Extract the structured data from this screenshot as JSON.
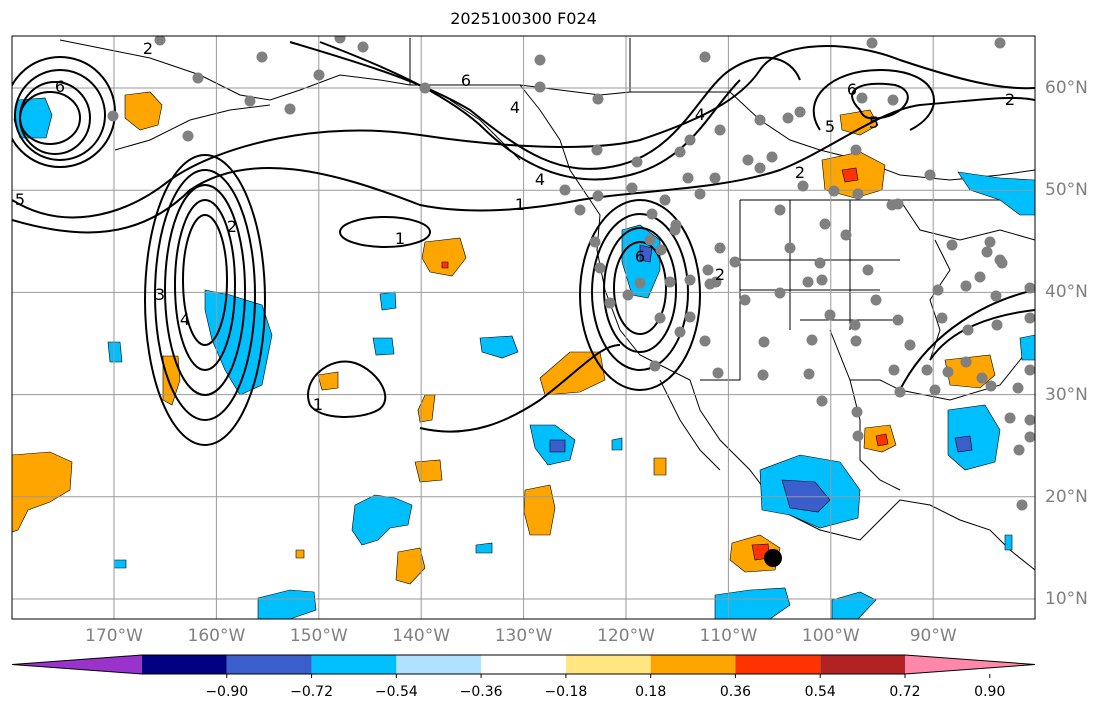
{
  "map": {
    "title": "2025100300 F024",
    "lon_labels": [
      {
        "label": "170°W",
        "lon": -170
      },
      {
        "label": "160°W",
        "lon": -160
      },
      {
        "label": "150°W",
        "lon": -150
      },
      {
        "label": "140°W",
        "lon": -140
      },
      {
        "label": "130°W",
        "lon": -130
      },
      {
        "label": "120°W",
        "lon": -120
      },
      {
        "label": "110°W",
        "lon": -110
      },
      {
        "label": "100°W",
        "lon": -100
      },
      {
        "label": "90°W",
        "lon": -90
      }
    ],
    "lat_labels": [
      {
        "label": "60°N",
        "lat": 60
      },
      {
        "label": "50°N",
        "lat": 50
      },
      {
        "label": "40°N",
        "lat": 40
      },
      {
        "label": "30°N",
        "lat": 30
      },
      {
        "label": "20°N",
        "lat": 20
      },
      {
        "label": "10°N",
        "lat": 10
      }
    ],
    "extent": {
      "lon_min": -180,
      "lon_max": -80,
      "lat_min": 8,
      "lat_max": 64
    },
    "grid": true,
    "contour_labels": [
      "1",
      "2",
      "3",
      "4",
      "5",
      "6"
    ],
    "colorbar": {
      "colors": [
        "#9933cc",
        "#000080",
        "#3a5fcd",
        "#00bfff",
        "#b0e2ff",
        "#ffffff",
        "#ffe680",
        "#ffa500",
        "#ff3300",
        "#b22222",
        "#ff88aa"
      ],
      "tick_labels": [
        "−0.90",
        "−0.72",
        "−0.54",
        "−0.36",
        "−0.18",
        "0.18",
        "0.36",
        "0.54",
        "0.72",
        "0.90"
      ]
    },
    "marker_colors": {
      "stations": "#808080",
      "storm": "#000000"
    }
  }
}
